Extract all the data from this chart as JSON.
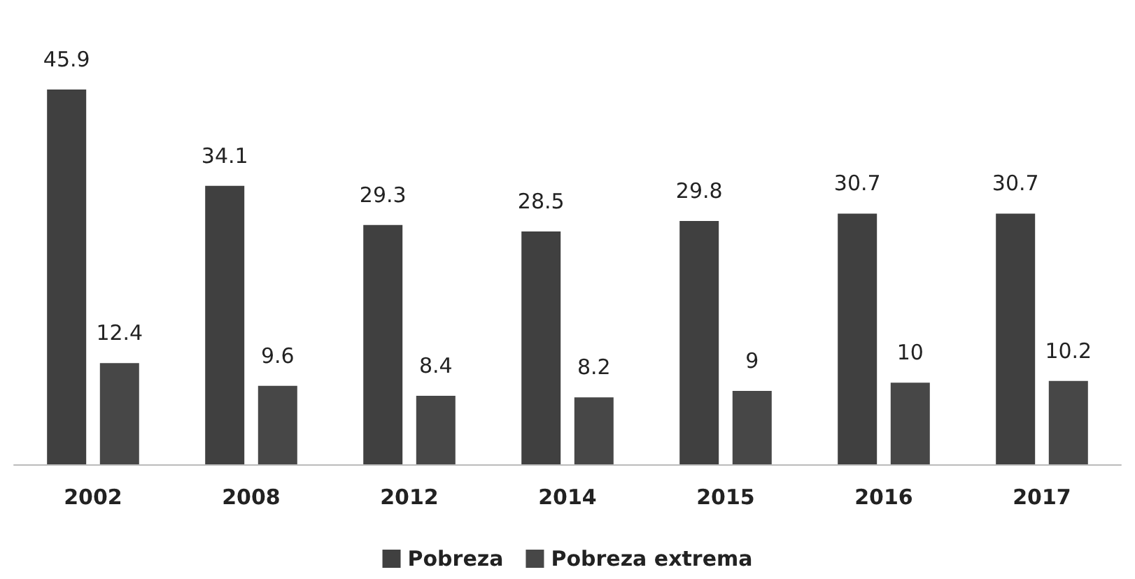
{
  "chart_data": {
    "type": "bar",
    "categories": [
      "2002",
      "2008",
      "2012",
      "2014",
      "2015",
      "2016",
      "2017"
    ],
    "series": [
      {
        "name": "Pobreza",
        "color": "#404040",
        "values": [
          45.9,
          34.1,
          29.3,
          28.5,
          29.8,
          30.7,
          30.7
        ]
      },
      {
        "name": "Pobreza extrema",
        "color": "#474747",
        "values": [
          12.4,
          9.6,
          8.4,
          8.2,
          9,
          10,
          10.2
        ]
      }
    ],
    "data_labels": true,
    "legend": "bottom"
  }
}
